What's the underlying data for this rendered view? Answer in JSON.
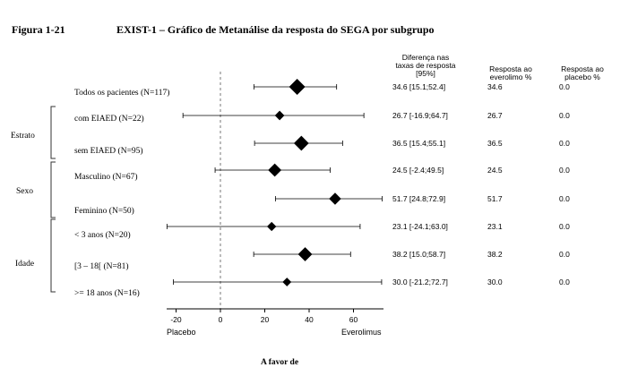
{
  "header": {
    "figure_label": "Figura 1-21",
    "title": "EXIST-1 – Gráfico de Metanálise da resposta do SEGA por subgrupo"
  },
  "columns": {
    "diff": "Diferença nas taxas de resposta [95%]",
    "evero": "Resposta ao everolimo %",
    "placebo": "Resposta ao placebo %"
  },
  "groups": [
    {
      "label": "Estrato",
      "rows": [
        1,
        2
      ]
    },
    {
      "label": "Sexo",
      "rows": [
        3,
        4
      ]
    },
    {
      "label": "Idade",
      "rows": [
        5,
        6,
        7
      ]
    }
  ],
  "rows": [
    {
      "label": "Todos os pacientes (N=117)",
      "ci_text": "34.6 [15.1;52.4]",
      "evero": "34.6",
      "placebo": "0.0"
    },
    {
      "label": "com EIAED (N=22)",
      "ci_text": "26.7 [-16.9;64.7]",
      "evero": "26.7",
      "placebo": "0.0"
    },
    {
      "label": "sem EIAED (N=95)",
      "ci_text": "36.5 [15.4;55.1]",
      "evero": "36.5",
      "placebo": "0.0"
    },
    {
      "label": "Masculino (N=67)",
      "ci_text": "24.5 [-2.4;49.5]",
      "evero": "24.5",
      "placebo": "0.0"
    },
    {
      "label": "Feminino (N=50)",
      "ci_text": "51.7 [24.8;72.9]",
      "evero": "51.7",
      "placebo": "0.0"
    },
    {
      "label": "< 3 anos (N=20)",
      "ci_text": "23.1 [-24.1;63.0]",
      "evero": "23.1",
      "placebo": "0.0"
    },
    {
      "label": "[3 – 18[ (N=81)",
      "ci_text": "38.2 [15.0;58.7]",
      "evero": "38.2",
      "placebo": "0.0"
    },
    {
      "label": ">= 18 anos (N=16)",
      "ci_text": "30.0 [-21.2;72.7]",
      "evero": "30.0",
      "placebo": "0.0"
    }
  ],
  "chart_data": {
    "type": "forest",
    "x_ticks": [
      -20,
      0,
      20,
      40,
      60
    ],
    "xlim": [
      -24,
      73
    ],
    "xlabel_left": "Placebo",
    "xlabel_right": "Everolimus",
    "xlabel": "A favor de",
    "reference_line": 0,
    "points": [
      {
        "estimate": 34.6,
        "lower": 15.1,
        "upper": 52.4,
        "n": 117
      },
      {
        "estimate": 26.7,
        "lower": -16.9,
        "upper": 64.7,
        "n": 22
      },
      {
        "estimate": 36.5,
        "lower": 15.4,
        "upper": 55.1,
        "n": 95
      },
      {
        "estimate": 24.5,
        "lower": -2.4,
        "upper": 49.5,
        "n": 67
      },
      {
        "estimate": 51.7,
        "lower": 24.8,
        "upper": 72.9,
        "n": 50
      },
      {
        "estimate": 23.1,
        "lower": -24.1,
        "upper": 63.0,
        "n": 20
      },
      {
        "estimate": 38.2,
        "lower": 15.0,
        "upper": 58.7,
        "n": 81
      },
      {
        "estimate": 30.0,
        "lower": -21.2,
        "upper": 72.7,
        "n": 16
      }
    ]
  }
}
